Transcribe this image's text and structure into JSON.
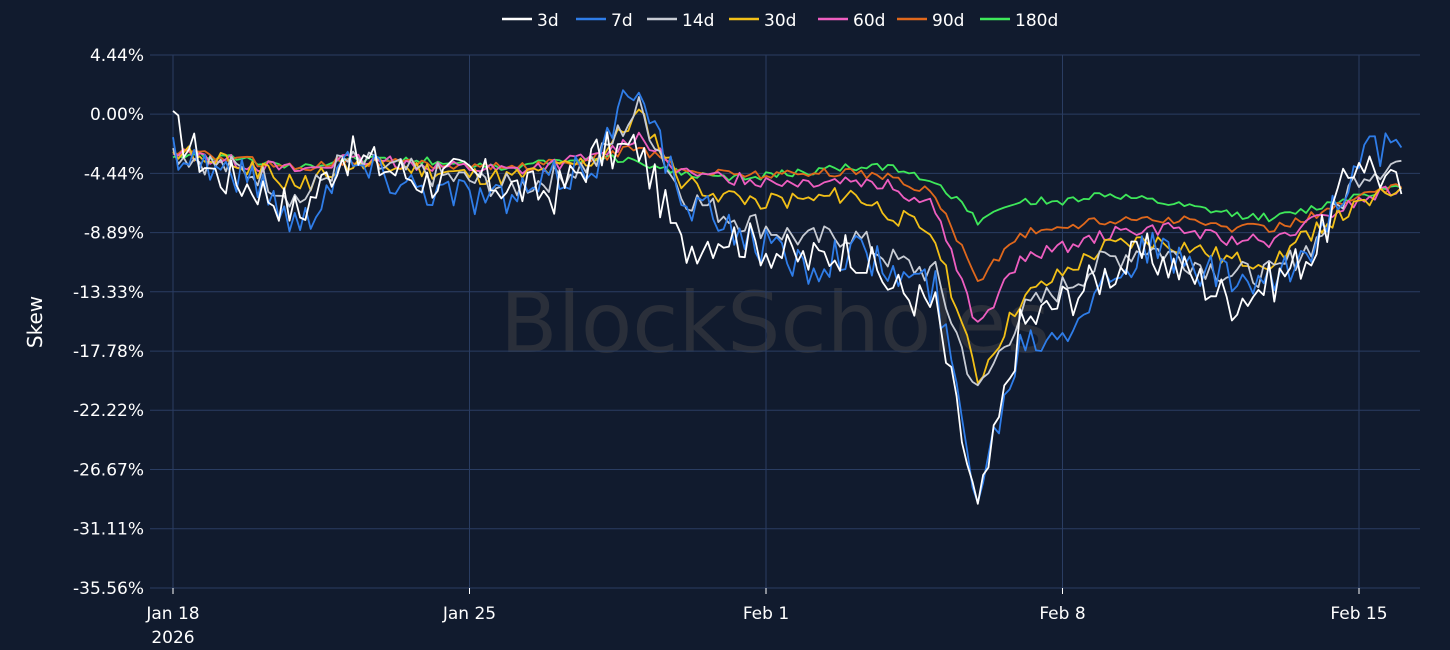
{
  "watermark": "BlockScholes",
  "chart_data": {
    "type": "line",
    "title": "",
    "xlabel": "",
    "ylabel": "Skew",
    "ylim": [
      -35.56,
      4.44
    ],
    "yticks": [
      4.44,
      0.0,
      -4.44,
      -8.89,
      -13.33,
      -17.78,
      -22.22,
      -26.67,
      -31.11,
      -35.56
    ],
    "ytick_labels": [
      "4.44%",
      "0.00%",
      "-4.44%",
      "-8.89%",
      "-13.33%",
      "-17.78%",
      "-22.22%",
      "-26.67%",
      "-31.11%",
      "-35.56%"
    ],
    "xlim": [
      "2026-01-18",
      "2026-02-16"
    ],
    "xticks": [
      {
        "label": "Jan 18",
        "sublabel": "2026",
        "date": "2026-01-18"
      },
      {
        "label": "Jan 25",
        "sublabel": "",
        "date": "2026-01-25"
      },
      {
        "label": "Feb 1",
        "sublabel": "",
        "date": "2026-02-01"
      },
      {
        "label": "Feb 8",
        "sublabel": "",
        "date": "2026-02-08"
      },
      {
        "label": "Feb 15",
        "sublabel": "",
        "date": "2026-02-15"
      }
    ],
    "grid": true,
    "legend_position": "top-center",
    "series": [
      {
        "name": "3d",
        "color": "#ffffff",
        "x": [
          "2026-01-18",
          "2026-01-19",
          "2026-01-20",
          "2026-01-21",
          "2026-01-22",
          "2026-01-23",
          "2026-01-24",
          "2026-01-25",
          "2026-01-26",
          "2026-01-27",
          "2026-01-28",
          "2026-01-29",
          "2026-01-30",
          "2026-01-31",
          "2026-02-01",
          "2026-02-02",
          "2026-02-03",
          "2026-02-04",
          "2026-02-05",
          "2026-02-06",
          "2026-02-07",
          "2026-02-08",
          "2026-02-09",
          "2026-02-10",
          "2026-02-11",
          "2026-02-12",
          "2026-02-13",
          "2026-02-14",
          "2026-02-15",
          "2026-02-16"
        ],
        "values": [
          -1.0,
          -4.5,
          -5.5,
          -7.5,
          -3.0,
          -4.0,
          -5.0,
          -4.5,
          -5.5,
          -6.0,
          -3.0,
          -2.5,
          -10.0,
          -9.0,
          -10.0,
          -11.0,
          -10.0,
          -13.0,
          -14.5,
          -30.0,
          -16.0,
          -14.0,
          -12.0,
          -10.5,
          -12.0,
          -14.0,
          -12.5,
          -10.0,
          -3.0,
          -6.0
        ]
      },
      {
        "name": "7d",
        "color": "#2f7de8",
        "x": [
          "2026-01-18",
          "2026-01-19",
          "2026-01-20",
          "2026-01-21",
          "2026-01-22",
          "2026-01-23",
          "2026-01-24",
          "2026-01-25",
          "2026-01-26",
          "2026-01-27",
          "2026-01-28",
          "2026-01-29",
          "2026-01-30",
          "2026-01-31",
          "2026-02-01",
          "2026-02-02",
          "2026-02-03",
          "2026-02-04",
          "2026-02-05",
          "2026-02-06",
          "2026-02-07",
          "2026-02-08",
          "2026-02-09",
          "2026-02-10",
          "2026-02-11",
          "2026-02-12",
          "2026-02-13",
          "2026-02-14",
          "2026-02-15",
          "2026-02-16"
        ],
        "values": [
          -2.5,
          -4.0,
          -5.0,
          -8.5,
          -3.5,
          -4.5,
          -5.5,
          -6.0,
          -6.5,
          -5.0,
          -3.5,
          3.0,
          -7.0,
          -8.0,
          -10.0,
          -11.5,
          -10.0,
          -12.0,
          -13.0,
          -28.5,
          -17.0,
          -16.0,
          -12.5,
          -10.0,
          -11.5,
          -12.5,
          -13.0,
          -9.5,
          -3.0,
          -2.5
        ]
      },
      {
        "name": "14d",
        "color": "#c8ccd4",
        "x": [
          "2026-01-18",
          "2026-01-19",
          "2026-01-20",
          "2026-01-21",
          "2026-01-22",
          "2026-01-23",
          "2026-01-24",
          "2026-01-25",
          "2026-01-26",
          "2026-01-27",
          "2026-01-28",
          "2026-01-29",
          "2026-01-30",
          "2026-01-31",
          "2026-02-01",
          "2026-02-02",
          "2026-02-03",
          "2026-02-04",
          "2026-02-05",
          "2026-02-06",
          "2026-02-07",
          "2026-02-08",
          "2026-02-09",
          "2026-02-10",
          "2026-02-11",
          "2026-02-12",
          "2026-02-13",
          "2026-02-14",
          "2026-02-15",
          "2026-02-16"
        ],
        "values": [
          -2.8,
          -3.8,
          -4.5,
          -6.5,
          -3.5,
          -4.0,
          -4.5,
          -5.0,
          -5.5,
          -4.8,
          -3.5,
          0.5,
          -6.0,
          -7.5,
          -8.5,
          -9.5,
          -9.0,
          -11.0,
          -12.0,
          -21.0,
          -15.0,
          -13.0,
          -11.0,
          -10.0,
          -11.0,
          -12.0,
          -12.0,
          -9.5,
          -4.5,
          -3.5
        ]
      },
      {
        "name": "30d",
        "color": "#f2c018",
        "x": [
          "2026-01-18",
          "2026-01-19",
          "2026-01-20",
          "2026-01-21",
          "2026-01-22",
          "2026-01-23",
          "2026-01-24",
          "2026-01-25",
          "2026-01-26",
          "2026-01-27",
          "2026-01-28",
          "2026-01-29",
          "2026-01-30",
          "2026-01-31",
          "2026-02-01",
          "2026-02-02",
          "2026-02-03",
          "2026-02-04",
          "2026-02-05",
          "2026-02-06",
          "2026-02-07",
          "2026-02-08",
          "2026-02-09",
          "2026-02-10",
          "2026-02-11",
          "2026-02-12",
          "2026-02-13",
          "2026-02-14",
          "2026-02-15",
          "2026-02-16"
        ],
        "values": [
          -2.8,
          -3.5,
          -4.2,
          -5.5,
          -3.8,
          -4.0,
          -4.2,
          -4.6,
          -4.8,
          -4.2,
          -3.4,
          0.0,
          -5.0,
          -6.0,
          -6.5,
          -6.5,
          -6.0,
          -7.5,
          -9.0,
          -20.0,
          -14.0,
          -12.0,
          -10.0,
          -9.5,
          -10.0,
          -11.0,
          -11.0,
          -8.5,
          -7.0,
          -5.5
        ]
      },
      {
        "name": "60d",
        "color": "#ee5ec0",
        "x": [
          "2026-01-18",
          "2026-01-19",
          "2026-01-20",
          "2026-01-21",
          "2026-01-22",
          "2026-01-23",
          "2026-01-24",
          "2026-01-25",
          "2026-01-26",
          "2026-01-27",
          "2026-01-28",
          "2026-01-29",
          "2026-01-30",
          "2026-01-31",
          "2026-02-01",
          "2026-02-02",
          "2026-02-03",
          "2026-02-04",
          "2026-02-05",
          "2026-02-06",
          "2026-02-07",
          "2026-02-08",
          "2026-02-09",
          "2026-02-10",
          "2026-02-11",
          "2026-02-12",
          "2026-02-13",
          "2026-02-14",
          "2026-02-15",
          "2026-02-16"
        ],
        "values": [
          -2.8,
          -3.3,
          -3.8,
          -4.2,
          -3.5,
          -3.6,
          -3.8,
          -4.0,
          -4.2,
          -3.8,
          -3.2,
          -1.5,
          -4.5,
          -4.8,
          -5.0,
          -5.0,
          -4.8,
          -5.5,
          -7.0,
          -16.0,
          -11.0,
          -10.0,
          -9.0,
          -8.5,
          -8.8,
          -9.5,
          -9.5,
          -8.0,
          -6.5,
          -5.5
        ]
      },
      {
        "name": "90d",
        "color": "#e0681c",
        "x": [
          "2026-01-18",
          "2026-01-19",
          "2026-01-20",
          "2026-01-21",
          "2026-01-22",
          "2026-01-23",
          "2026-01-24",
          "2026-01-25",
          "2026-01-26",
          "2026-01-27",
          "2026-01-28",
          "2026-01-29",
          "2026-01-30",
          "2026-01-31",
          "2026-02-01",
          "2026-02-02",
          "2026-02-03",
          "2026-02-04",
          "2026-02-05",
          "2026-02-06",
          "2026-02-07",
          "2026-02-08",
          "2026-02-09",
          "2026-02-10",
          "2026-02-11",
          "2026-02-12",
          "2026-02-13",
          "2026-02-14",
          "2026-02-15",
          "2026-02-16"
        ],
        "values": [
          -2.8,
          -3.2,
          -3.6,
          -4.0,
          -3.5,
          -3.6,
          -3.7,
          -3.9,
          -4.0,
          -3.7,
          -3.3,
          -2.5,
          -4.2,
          -4.4,
          -4.5,
          -4.5,
          -4.3,
          -4.8,
          -6.0,
          -12.5,
          -9.0,
          -8.5,
          -8.0,
          -7.8,
          -8.0,
          -8.5,
          -8.5,
          -7.5,
          -6.2,
          -5.5
        ]
      },
      {
        "name": "180d",
        "color": "#3ee85a",
        "x": [
          "2026-01-18",
          "2026-01-19",
          "2026-01-20",
          "2026-01-21",
          "2026-01-22",
          "2026-01-23",
          "2026-01-24",
          "2026-01-25",
          "2026-01-26",
          "2026-01-27",
          "2026-01-28",
          "2026-01-29",
          "2026-01-30",
          "2026-01-31",
          "2026-02-01",
          "2026-02-02",
          "2026-02-03",
          "2026-02-04",
          "2026-02-05",
          "2026-02-06",
          "2026-02-07",
          "2026-02-08",
          "2026-02-09",
          "2026-02-10",
          "2026-02-11",
          "2026-02-12",
          "2026-02-13",
          "2026-02-14",
          "2026-02-15",
          "2026-02-16"
        ],
        "values": [
          -3.0,
          -3.2,
          -3.5,
          -4.0,
          -3.3,
          -3.4,
          -3.5,
          -3.7,
          -4.0,
          -3.6,
          -3.3,
          -3.5,
          -4.5,
          -4.8,
          -4.6,
          -4.3,
          -4.0,
          -4.0,
          -5.0,
          -8.0,
          -6.5,
          -6.5,
          -6.0,
          -6.5,
          -7.0,
          -7.5,
          -7.8,
          -7.0,
          -6.0,
          -5.5
        ]
      }
    ]
  }
}
